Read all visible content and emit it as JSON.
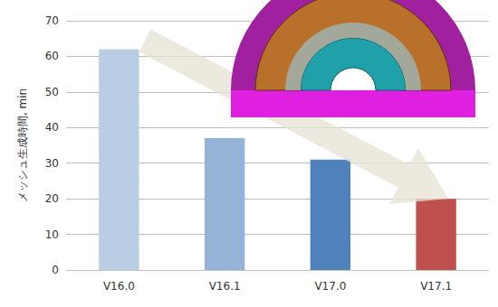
{
  "chart_data": {
    "type": "bar",
    "y_label": "メッシュ生成時間, min",
    "categories": [
      "V16.0",
      "V16.1",
      "V17.0",
      "V17.1"
    ],
    "values": [
      62,
      37,
      31,
      20
    ],
    "colors": [
      "#b9cde5",
      "#95b3d7",
      "#4f81bd",
      "#c0504d"
    ],
    "ylim": [
      0,
      70
    ],
    "yticks": [
      0,
      10,
      20,
      30,
      40,
      50,
      60,
      70
    ],
    "grid": true
  }
}
